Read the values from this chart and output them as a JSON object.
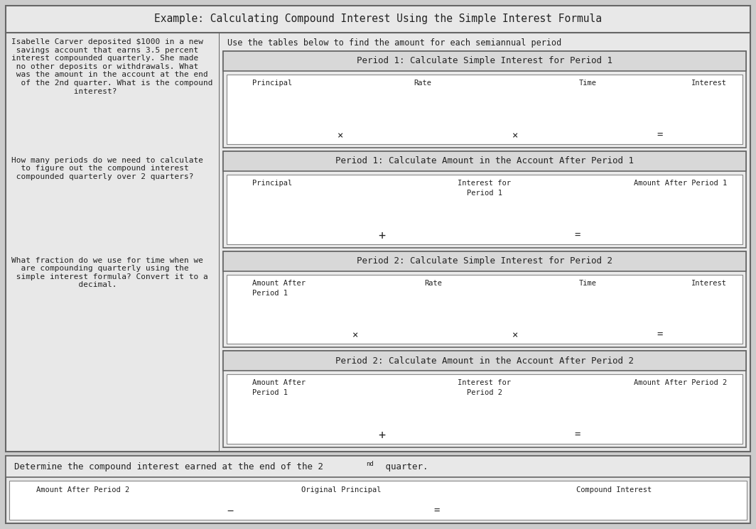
{
  "title": "Example: Calculating Compound Interest Using the Simple Interest Formula",
  "bg_color": "#cccccc",
  "main_box_color": "#e8e8e8",
  "section_header_color": "#d4d4d4",
  "inner_box_color": "#ffffff",
  "border_color": "#777777",
  "text_color": "#333333",
  "left_para1": "Isabelle Carver deposited $1000 in a new\n savings account that earns 3.5 percent\ninterest compounded quarterly. She made\n no other deposits or withdrawals. What\n was the amount in the account at the end\n  of the 2nd quarter. What is the compound\n             interest?",
  "left_para2": "How many periods do we need to calculate\n  to figure out the compound interest\n compounded quarterly over 2 quarters?",
  "left_para3": "What fraction do we use for time when we\n  are compounding quarterly using the\n simple interest formula? Convert it to a\n              decimal.",
  "right_intro": "Use the tables below to find the amount for each semiannual period",
  "p1si_header": "Period 1: Calculate Simple Interest for Period 1",
  "p1si_cols": [
    "Principal",
    "Rate",
    "Time",
    "Interest"
  ],
  "p1amt_header": "Period 1: Calculate Amount in the Account After Period 1",
  "p1amt_cols": [
    "Principal",
    "Interest for\nPeriod 1",
    "Amount After Period 1"
  ],
  "p2si_header": "Period 2: Calculate Simple Interest for Period 2",
  "p2si_cols": [
    "Amount After\nPeriod 1",
    "Rate",
    "Time",
    "Interest"
  ],
  "p2amt_header": "Period 2: Calculate Amount in the Account After Period 2",
  "p2amt_cols": [
    "Amount After\nPeriod 1",
    "Interest for\nPeriod 2",
    "Amount After Period 2"
  ],
  "bottom_header": "Determine the compound interest earned at the end of the 2nd quarter.",
  "bottom_cols": [
    "Amount After Period 2",
    "Original Principal",
    "Compound Interest"
  ]
}
